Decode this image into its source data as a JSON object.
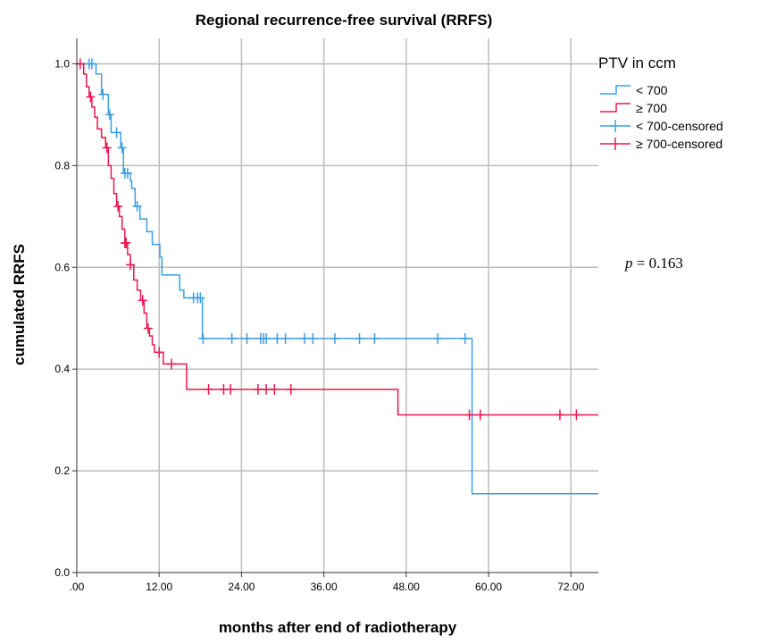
{
  "chart_data": {
    "type": "line",
    "title": "Regional recurrence-free survival (RRFS)",
    "xlabel": "months after end of radiotherapy",
    "ylabel": "cumulated RRFS",
    "xlim": [
      0,
      76
    ],
    "ylim": [
      0,
      1.05
    ],
    "x_ticks": [
      0,
      12,
      24,
      36,
      48,
      60,
      72
    ],
    "x_tick_labels": [
      ".00",
      "12.00",
      "24.00",
      "36.00",
      "48.00",
      "60.00",
      "72.00"
    ],
    "y_ticks": [
      0,
      0.2,
      0.4,
      0.6,
      0.8,
      1.0
    ],
    "y_tick_labels": [
      "0.0",
      "0.2",
      "0.4",
      "0.6",
      "0.8",
      "1.0"
    ],
    "grid": true,
    "legend": {
      "title": "PTV in ccm",
      "placement": "right",
      "entries": [
        "< 700",
        "≥ 700",
        "< 700-censored",
        "≥ 700-censored"
      ]
    },
    "annotation": {
      "p_symbol": "p",
      "p_rest": " = 0.163"
    },
    "series": [
      {
        "name": "< 700",
        "color": "#3b9ee6",
        "steps": [
          [
            0,
            1.0
          ],
          [
            2.8,
            0.98
          ],
          [
            3.6,
            0.94
          ],
          [
            4.6,
            0.9
          ],
          [
            5.0,
            0.865
          ],
          [
            6.4,
            0.835
          ],
          [
            6.8,
            0.785
          ],
          [
            7.8,
            0.77
          ],
          [
            8.0,
            0.755
          ],
          [
            8.5,
            0.72
          ],
          [
            9.2,
            0.695
          ],
          [
            10.2,
            0.67
          ],
          [
            11.0,
            0.645
          ],
          [
            12.1,
            0.62
          ],
          [
            12.4,
            0.585
          ],
          [
            15.0,
            0.555
          ],
          [
            15.6,
            0.54
          ],
          [
            18.3,
            0.46
          ],
          [
            57.6,
            0.155
          ]
        ],
        "end_x": 76,
        "censored": [
          1.8,
          2.2,
          3.8,
          4.8,
          5.8,
          6.6,
          7.0,
          7.4,
          8.8,
          17.0,
          17.6,
          18.0,
          18.4,
          22.6,
          24.8,
          26.8,
          27.2,
          27.6,
          29.2,
          30.4,
          33.2,
          34.4,
          37.6,
          41.2,
          43.4,
          52.6,
          56.6
        ]
      },
      {
        "name": "≥ 700",
        "color": "#e8194f",
        "steps": [
          [
            0,
            1.0
          ],
          [
            1.0,
            0.98
          ],
          [
            1.4,
            0.955
          ],
          [
            1.8,
            0.935
          ],
          [
            2.2,
            0.915
          ],
          [
            2.6,
            0.895
          ],
          [
            3.0,
            0.872
          ],
          [
            3.6,
            0.855
          ],
          [
            4.2,
            0.835
          ],
          [
            4.6,
            0.8
          ],
          [
            5.0,
            0.775
          ],
          [
            5.4,
            0.745
          ],
          [
            5.8,
            0.72
          ],
          [
            6.2,
            0.7
          ],
          [
            6.6,
            0.675
          ],
          [
            7.0,
            0.648
          ],
          [
            7.4,
            0.625
          ],
          [
            7.8,
            0.605
          ],
          [
            8.3,
            0.575
          ],
          [
            8.8,
            0.555
          ],
          [
            9.3,
            0.535
          ],
          [
            9.8,
            0.51
          ],
          [
            10.2,
            0.48
          ],
          [
            10.6,
            0.465
          ],
          [
            11.0,
            0.448
          ],
          [
            11.3,
            0.433
          ],
          [
            12.6,
            0.41
          ],
          [
            16.0,
            0.36
          ],
          [
            46.8,
            0.31
          ]
        ],
        "end_x": 76,
        "censored": [
          0.5,
          2.0,
          4.4,
          6.0,
          7.0,
          7.2,
          7.8,
          9.6,
          10.4,
          12.0,
          13.8,
          19.2,
          21.4,
          22.4,
          26.4,
          27.6,
          28.8,
          31.2,
          57.2,
          58.8,
          70.4,
          72.8
        ]
      }
    ]
  }
}
